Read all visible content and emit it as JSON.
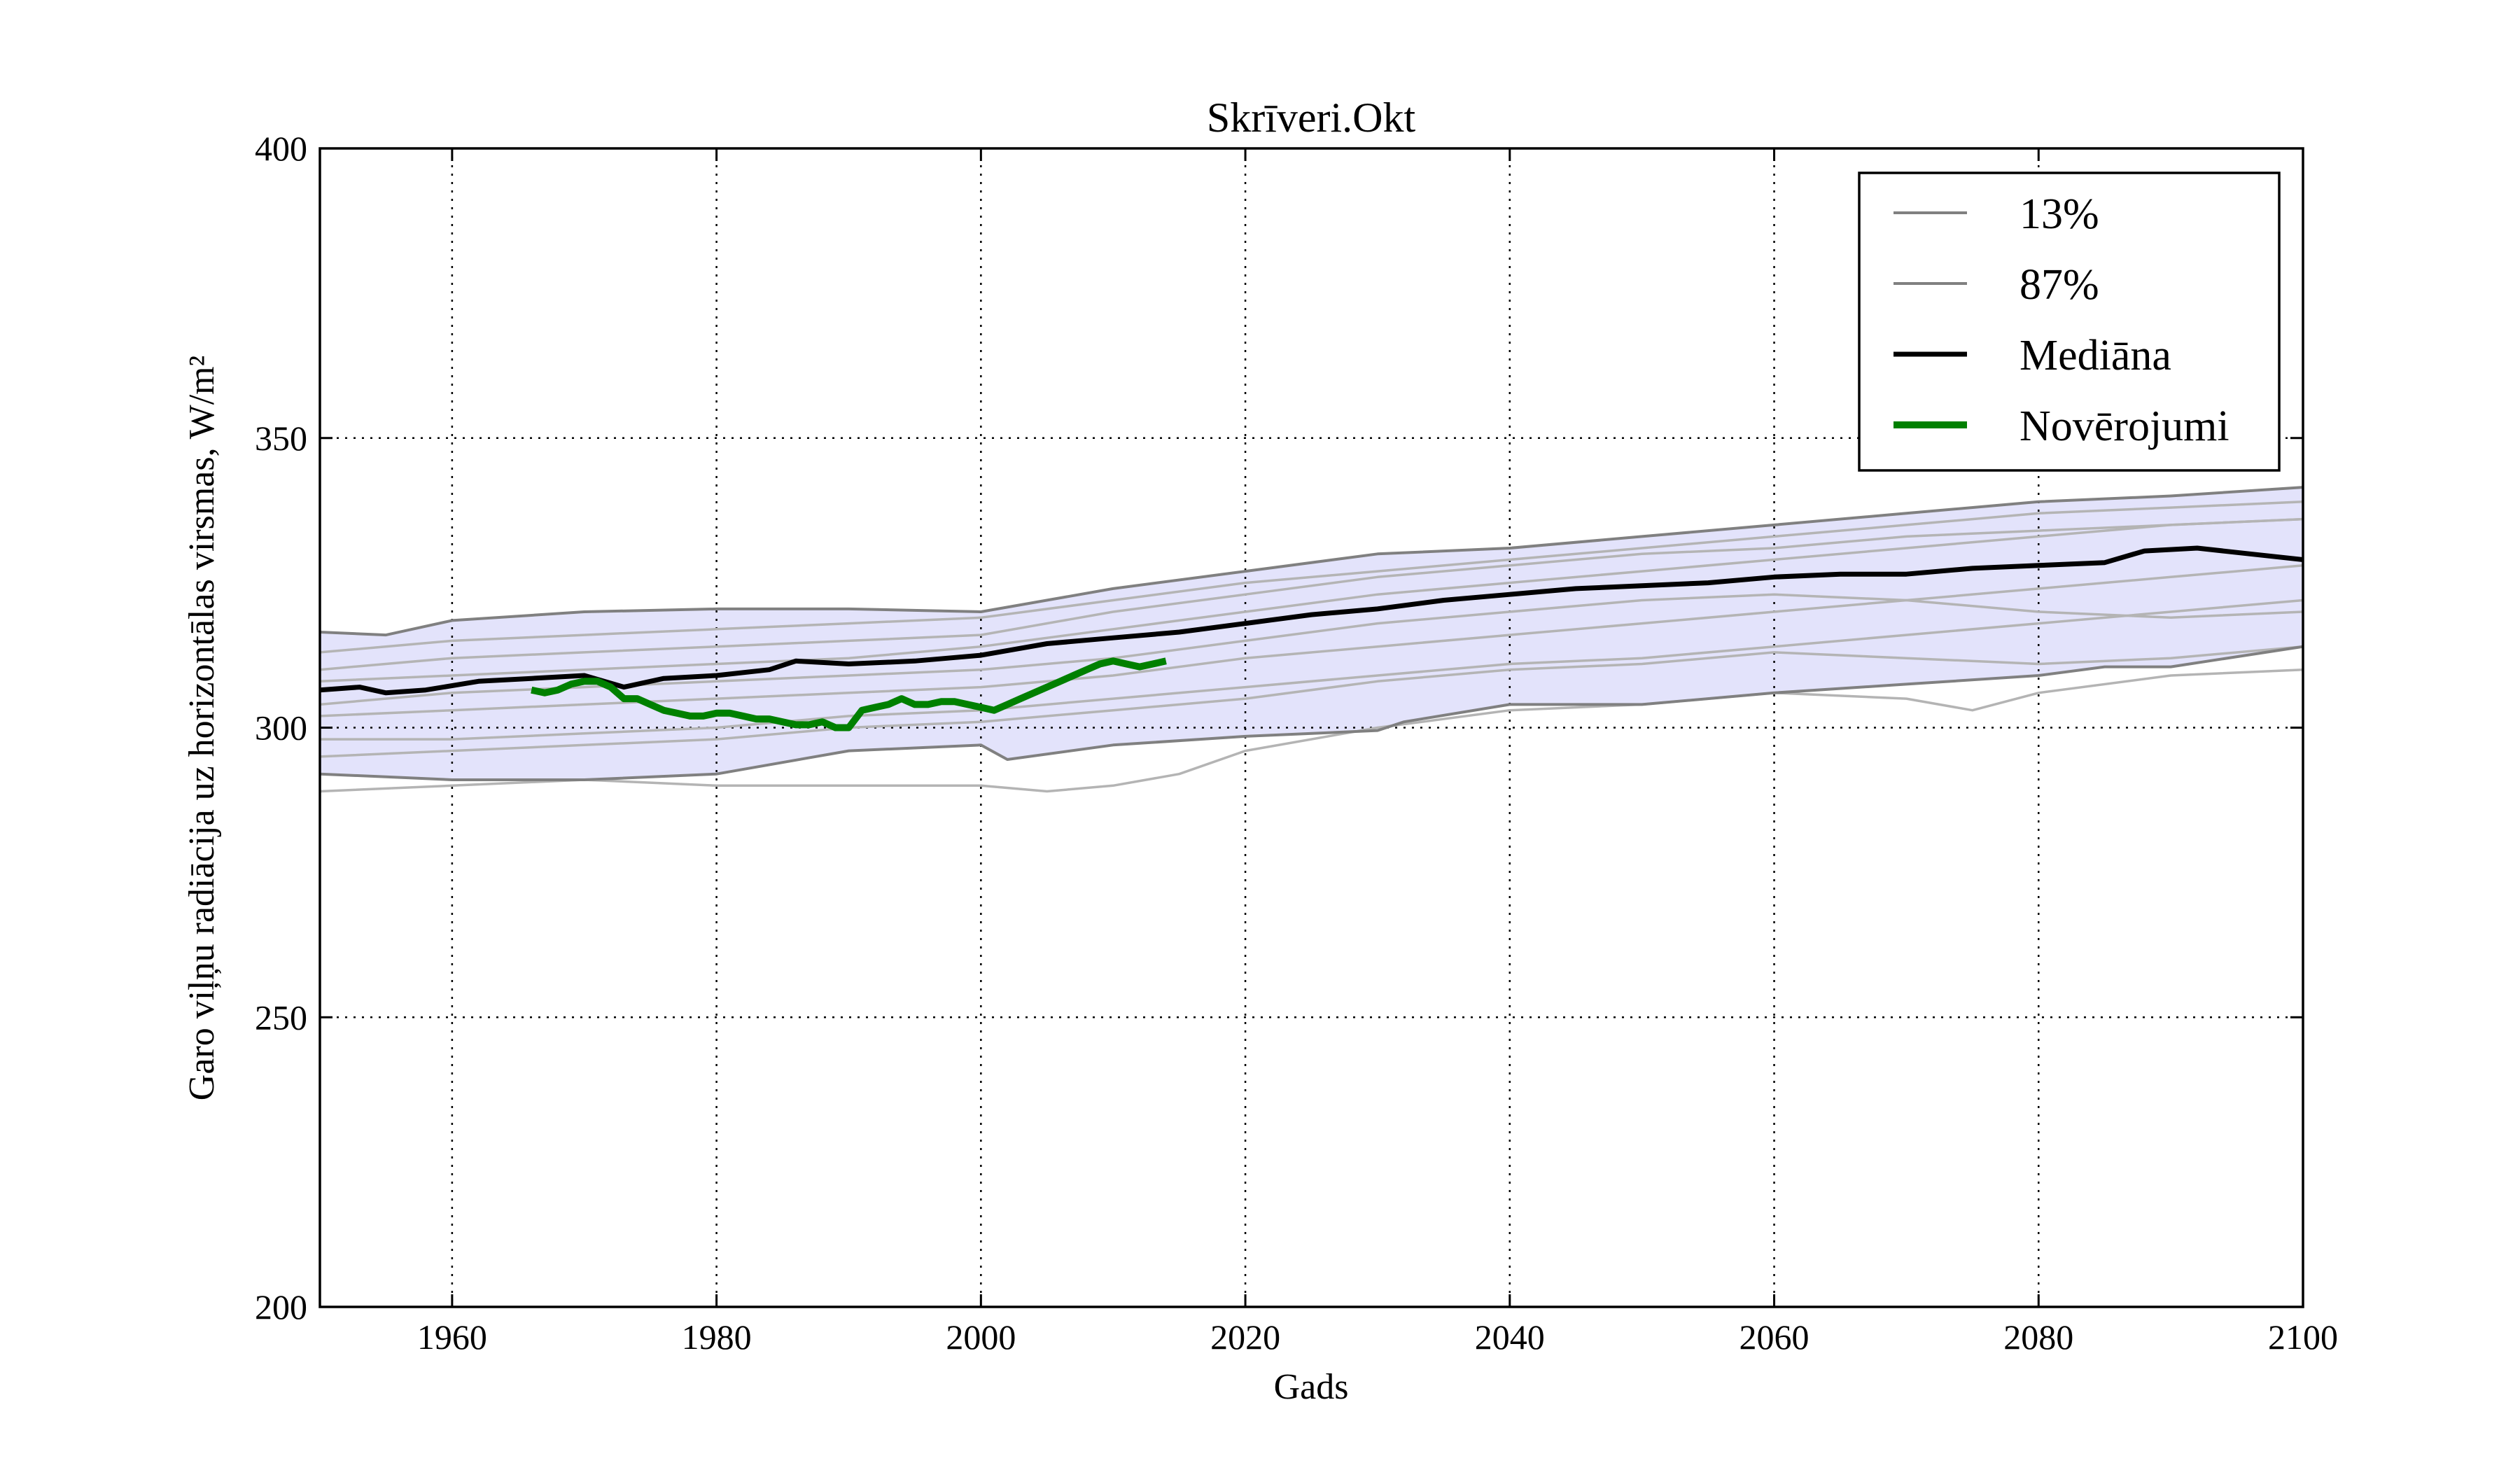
{
  "chart_data": {
    "type": "line",
    "title": "Skrīveri.Okt",
    "xlabel": "Gads",
    "ylabel": "Garo viļņu radiācija uz horizontālas virsmas, W/m²",
    "xlim": [
      1950,
      2100
    ],
    "ylim": [
      200,
      400
    ],
    "xticks": [
      1960,
      1980,
      2000,
      2020,
      2040,
      2060,
      2080,
      2100
    ],
    "yticks": [
      200,
      250,
      300,
      350,
      400
    ],
    "grid": true,
    "legend_position": "top-right",
    "colors": {
      "band": "#e3e3fb",
      "ensemble": "#b4b4b4",
      "percentile": "#808080",
      "median": "#000000",
      "observations": "#008000"
    },
    "legend": [
      {
        "label": "13%",
        "color": "#808080",
        "style": "thin"
      },
      {
        "label": "87%",
        "color": "#808080",
        "style": "thin"
      },
      {
        "label": "Mediāna",
        "color": "#000000",
        "style": "thick"
      },
      {
        "label": "Novērojumi",
        "color": "#008000",
        "style": "thicker"
      }
    ],
    "band": {
      "upper": [
        [
          1950,
          316.5
        ],
        [
          1955,
          316
        ],
        [
          1960,
          318.5
        ],
        [
          1970,
          320
        ],
        [
          1980,
          320.5
        ],
        [
          1990,
          320.5
        ],
        [
          2000,
          320
        ],
        [
          2010,
          324
        ],
        [
          2020,
          327
        ],
        [
          2030,
          330
        ],
        [
          2040,
          331
        ],
        [
          2050,
          333
        ],
        [
          2060,
          335
        ],
        [
          2070,
          337
        ],
        [
          2080,
          339
        ],
        [
          2090,
          340
        ],
        [
          2100,
          341.5
        ]
      ],
      "lower": [
        [
          1950,
          292
        ],
        [
          1955,
          291.5
        ],
        [
          1960,
          291
        ],
        [
          1970,
          291
        ],
        [
          1980,
          292
        ],
        [
          1990,
          296
        ],
        [
          2000,
          297
        ],
        [
          2002,
          294.5
        ],
        [
          2010,
          297
        ],
        [
          2020,
          298.5
        ],
        [
          2030,
          299.5
        ],
        [
          2032,
          301
        ],
        [
          2040,
          304
        ],
        [
          2050,
          304
        ],
        [
          2060,
          306
        ],
        [
          2070,
          307.5
        ],
        [
          2080,
          309
        ],
        [
          2085,
          310.5
        ],
        [
          2090,
          310.5
        ],
        [
          2100,
          314
        ]
      ]
    },
    "series": [
      {
        "name": "13%",
        "role": "percentile",
        "points": [
          [
            1950,
            292
          ],
          [
            1955,
            291.5
          ],
          [
            1960,
            291
          ],
          [
            1970,
            291
          ],
          [
            1980,
            292
          ],
          [
            1990,
            296
          ],
          [
            2000,
            297
          ],
          [
            2002,
            294.5
          ],
          [
            2010,
            297
          ],
          [
            2020,
            298.5
          ],
          [
            2030,
            299.5
          ],
          [
            2032,
            301
          ],
          [
            2040,
            304
          ],
          [
            2050,
            304
          ],
          [
            2060,
            306
          ],
          [
            2070,
            307.5
          ],
          [
            2080,
            309
          ],
          [
            2085,
            310.5
          ],
          [
            2090,
            310.5
          ],
          [
            2100,
            314
          ]
        ]
      },
      {
        "name": "87%",
        "role": "percentile",
        "points": [
          [
            1950,
            316.5
          ],
          [
            1955,
            316
          ],
          [
            1960,
            318.5
          ],
          [
            1970,
            320
          ],
          [
            1980,
            320.5
          ],
          [
            1990,
            320.5
          ],
          [
            2000,
            320
          ],
          [
            2010,
            324
          ],
          [
            2020,
            327
          ],
          [
            2030,
            330
          ],
          [
            2040,
            331
          ],
          [
            2050,
            333
          ],
          [
            2060,
            335
          ],
          [
            2070,
            337
          ],
          [
            2080,
            339
          ],
          [
            2090,
            340
          ],
          [
            2100,
            341.5
          ]
        ]
      },
      {
        "name": "Mediāna",
        "role": "median",
        "points": [
          [
            1950,
            306.5
          ],
          [
            1953,
            307
          ],
          [
            1955,
            306
          ],
          [
            1958,
            306.5
          ],
          [
            1962,
            308
          ],
          [
            1966,
            308.5
          ],
          [
            1970,
            309
          ],
          [
            1973,
            307
          ],
          [
            1976,
            308.5
          ],
          [
            1980,
            309
          ],
          [
            1984,
            310
          ],
          [
            1986,
            311.5
          ],
          [
            1990,
            311
          ],
          [
            1995,
            311.5
          ],
          [
            2000,
            312.5
          ],
          [
            2005,
            314.5
          ],
          [
            2010,
            315.5
          ],
          [
            2015,
            316.5
          ],
          [
            2020,
            318
          ],
          [
            2025,
            319.5
          ],
          [
            2030,
            320.5
          ],
          [
            2035,
            322
          ],
          [
            2040,
            323
          ],
          [
            2045,
            324
          ],
          [
            2050,
            324.5
          ],
          [
            2055,
            325
          ],
          [
            2060,
            326
          ],
          [
            2065,
            326.5
          ],
          [
            2070,
            326.5
          ],
          [
            2075,
            327.5
          ],
          [
            2080,
            328
          ],
          [
            2085,
            328.5
          ],
          [
            2088,
            330.5
          ],
          [
            2092,
            331
          ],
          [
            2096,
            330
          ],
          [
            2100,
            329
          ]
        ]
      },
      {
        "name": "Novērojumi",
        "role": "observations",
        "points": [
          [
            1966,
            306.5
          ],
          [
            1967,
            306
          ],
          [
            1968,
            306.5
          ],
          [
            1969,
            307.5
          ],
          [
            1970,
            308
          ],
          [
            1971,
            308
          ],
          [
            1972,
            307
          ],
          [
            1973,
            305
          ],
          [
            1974,
            305
          ],
          [
            1975,
            304
          ],
          [
            1976,
            303
          ],
          [
            1977,
            302.5
          ],
          [
            1978,
            302
          ],
          [
            1979,
            302
          ],
          [
            1980,
            302.5
          ],
          [
            1981,
            302.5
          ],
          [
            1982,
            302
          ],
          [
            1983,
            301.5
          ],
          [
            1984,
            301.5
          ],
          [
            1985,
            301
          ],
          [
            1986,
            300.5
          ],
          [
            1987,
            300.5
          ],
          [
            1988,
            301
          ],
          [
            1989,
            300
          ],
          [
            1990,
            300
          ],
          [
            1991,
            303
          ],
          [
            1992,
            303.5
          ],
          [
            1993,
            304
          ],
          [
            1994,
            305
          ],
          [
            1995,
            304
          ],
          [
            1996,
            304
          ],
          [
            1997,
            304.5
          ],
          [
            1998,
            304.5
          ],
          [
            1999,
            304
          ],
          [
            2000,
            303.5
          ],
          [
            2001,
            303
          ],
          [
            2002,
            304
          ],
          [
            2003,
            305
          ],
          [
            2004,
            306
          ],
          [
            2005,
            307
          ],
          [
            2006,
            308
          ],
          [
            2007,
            309
          ],
          [
            2008,
            310
          ],
          [
            2009,
            311
          ],
          [
            2010,
            311.5
          ],
          [
            2011,
            311
          ],
          [
            2012,
            310.5
          ],
          [
            2013,
            311
          ],
          [
            2014,
            311.5
          ]
        ]
      },
      {
        "role": "ensemble",
        "points": [
          [
            1950,
            310
          ],
          [
            1960,
            312
          ],
          [
            1970,
            313
          ],
          [
            1980,
            314
          ],
          [
            1990,
            315
          ],
          [
            2000,
            316
          ],
          [
            2010,
            320
          ],
          [
            2020,
            323
          ],
          [
            2030,
            326
          ],
          [
            2040,
            328
          ],
          [
            2050,
            330
          ],
          [
            2060,
            331
          ],
          [
            2070,
            333
          ],
          [
            2080,
            334
          ],
          [
            2090,
            335
          ],
          [
            2100,
            336
          ]
        ]
      },
      {
        "role": "ensemble",
        "points": [
          [
            1950,
            302
          ],
          [
            1960,
            303
          ],
          [
            1970,
            304
          ],
          [
            1980,
            305
          ],
          [
            1990,
            306
          ],
          [
            2000,
            307
          ],
          [
            2010,
            309
          ],
          [
            2020,
            312
          ],
          [
            2030,
            314
          ],
          [
            2040,
            316
          ],
          [
            2050,
            318
          ],
          [
            2060,
            320
          ],
          [
            2070,
            322
          ],
          [
            2080,
            324
          ],
          [
            2090,
            326
          ],
          [
            2100,
            328
          ]
        ]
      },
      {
        "role": "ensemble",
        "points": [
          [
            1950,
            298
          ],
          [
            1960,
            298
          ],
          [
            1970,
            299
          ],
          [
            1980,
            300
          ],
          [
            1990,
            302
          ],
          [
            2000,
            303
          ],
          [
            2010,
            305
          ],
          [
            2020,
            307
          ],
          [
            2030,
            309
          ],
          [
            2040,
            311
          ],
          [
            2050,
            312
          ],
          [
            2060,
            314
          ],
          [
            2070,
            316
          ],
          [
            2080,
            318
          ],
          [
            2090,
            320
          ],
          [
            2100,
            322
          ]
        ]
      },
      {
        "role": "ensemble",
        "points": [
          [
            1950,
            289
          ],
          [
            1960,
            290
          ],
          [
            1970,
            291
          ],
          [
            1980,
            290
          ],
          [
            1990,
            290
          ],
          [
            2000,
            290
          ],
          [
            2005,
            289
          ],
          [
            2010,
            290
          ],
          [
            2015,
            292
          ],
          [
            2020,
            296
          ],
          [
            2030,
            300
          ],
          [
            2040,
            303
          ],
          [
            2050,
            304
          ],
          [
            2060,
            306
          ],
          [
            2070,
            305
          ],
          [
            2075,
            303
          ],
          [
            2080,
            306
          ],
          [
            2090,
            309
          ],
          [
            2100,
            310
          ]
        ]
      },
      {
        "role": "ensemble",
        "points": [
          [
            1950,
            313
          ],
          [
            1960,
            315
          ],
          [
            1970,
            316
          ],
          [
            1980,
            317
          ],
          [
            1990,
            318
          ],
          [
            2000,
            319
          ],
          [
            2010,
            322
          ],
          [
            2020,
            325
          ],
          [
            2030,
            327
          ],
          [
            2040,
            329
          ],
          [
            2050,
            331
          ],
          [
            2060,
            333
          ],
          [
            2070,
            335
          ],
          [
            2080,
            337
          ],
          [
            2090,
            338
          ],
          [
            2100,
            339
          ]
        ]
      },
      {
        "role": "ensemble",
        "points": [
          [
            1950,
            304
          ],
          [
            1960,
            306
          ],
          [
            1970,
            307
          ],
          [
            1980,
            308
          ],
          [
            1990,
            309
          ],
          [
            2000,
            310
          ],
          [
            2010,
            312
          ],
          [
            2020,
            315
          ],
          [
            2030,
            318
          ],
          [
            2040,
            320
          ],
          [
            2050,
            322
          ],
          [
            2060,
            323
          ],
          [
            2070,
            322
          ],
          [
            2080,
            320
          ],
          [
            2090,
            319
          ],
          [
            2100,
            320
          ]
        ]
      },
      {
        "role": "ensemble",
        "points": [
          [
            1950,
            295
          ],
          [
            1960,
            296
          ],
          [
            1970,
            297
          ],
          [
            1980,
            298
          ],
          [
            1990,
            300
          ],
          [
            2000,
            301
          ],
          [
            2010,
            303
          ],
          [
            2020,
            305
          ],
          [
            2030,
            308
          ],
          [
            2040,
            310
          ],
          [
            2050,
            311
          ],
          [
            2060,
            313
          ],
          [
            2070,
            312
          ],
          [
            2080,
            311
          ],
          [
            2090,
            312
          ],
          [
            2100,
            314
          ]
        ]
      },
      {
        "role": "ensemble",
        "points": [
          [
            1950,
            308
          ],
          [
            1960,
            309
          ],
          [
            1970,
            310
          ],
          [
            1980,
            311
          ],
          [
            1990,
            312
          ],
          [
            2000,
            314
          ],
          [
            2010,
            317
          ],
          [
            2020,
            320
          ],
          [
            2030,
            323
          ],
          [
            2040,
            325
          ],
          [
            2050,
            327
          ],
          [
            2060,
            329
          ],
          [
            2070,
            331
          ],
          [
            2080,
            333
          ],
          [
            2090,
            335
          ],
          [
            2100,
            336
          ]
        ]
      }
    ]
  }
}
